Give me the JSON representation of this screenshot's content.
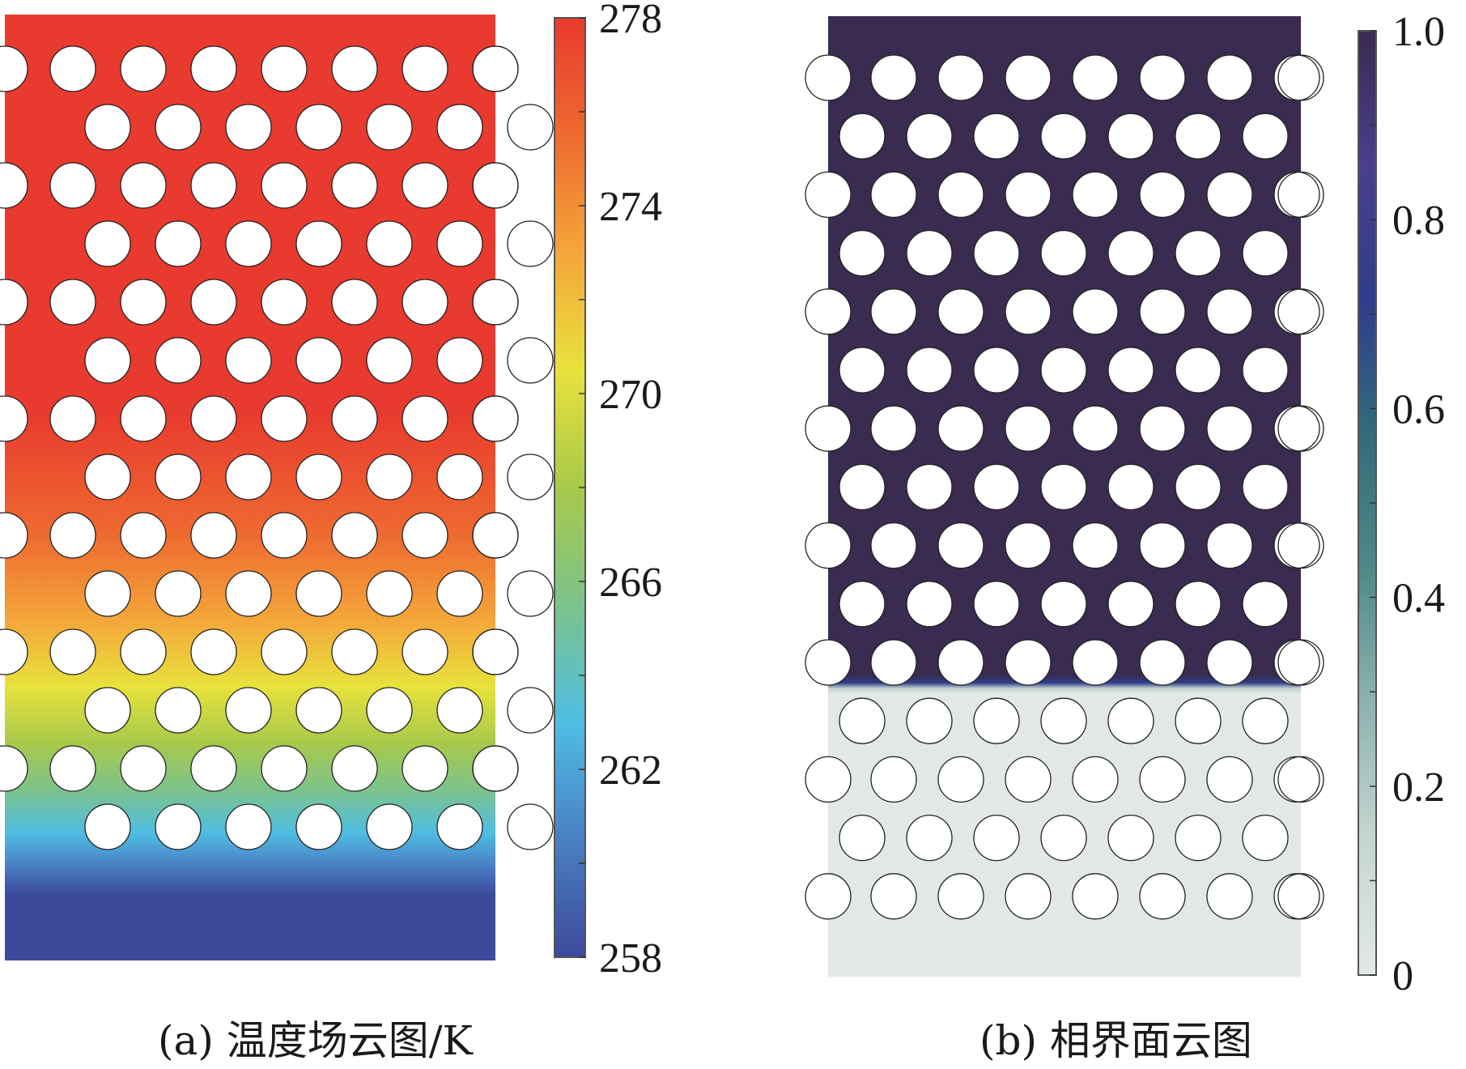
{
  "panels": [
    {
      "id": "a",
      "caption": "(a) 温度场云图/K",
      "colorbar": {
        "min": 258,
        "max": 278,
        "ticks": [
          "278",
          "274",
          "270",
          "266",
          "262",
          "258"
        ],
        "tick_values": [
          278,
          274,
          270,
          266,
          262,
          258
        ],
        "colormap": "rainbow",
        "colors": [
          "#3d4a9b",
          "#4a7fc4",
          "#4fbde3",
          "#7cc38c",
          "#a8c94a",
          "#e8e23c",
          "#f4a63a",
          "#ee6a30",
          "#e83a2e"
        ]
      },
      "field": {
        "quantity": "temperature",
        "top_value": 278,
        "bottom_value": 258
      }
    },
    {
      "id": "b",
      "caption": "(b) 相界面云图",
      "colorbar": {
        "min": 0,
        "max": 1,
        "ticks": [
          "1.0",
          "0.8",
          "0.6",
          "0.4",
          "0.2",
          "0"
        ],
        "tick_values": [
          1.0,
          0.8,
          0.6,
          0.4,
          0.2,
          0
        ],
        "colormap": "phase",
        "colors": [
          "#e2e8e6",
          "#c6d5d1",
          "#8fb3b0",
          "#4f8a88",
          "#336c7a",
          "#2f3d8a",
          "#4a3f8c",
          "#3a2b50"
        ]
      },
      "field": {
        "quantity": "phase fraction",
        "upper_value": 1.0,
        "lower_value": 0
      }
    }
  ]
}
